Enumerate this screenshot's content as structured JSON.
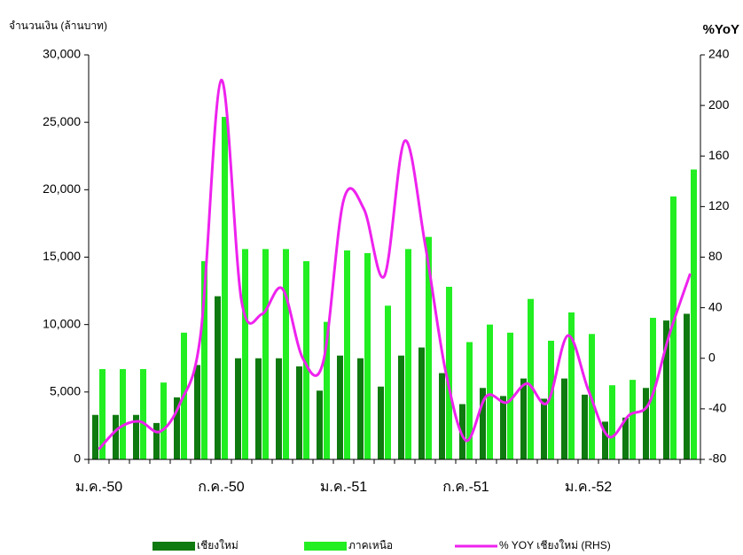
{
  "chart_data": {
    "type": "bar",
    "y_label": "จำนวนเงิน (ล้านบาท)",
    "y2_label": "%YoY",
    "categories": [
      "ม.ค.-50",
      null,
      null,
      null,
      null,
      null,
      "ก.ค.-50",
      null,
      null,
      null,
      null,
      null,
      "ม.ค.-51",
      null,
      null,
      null,
      null,
      null,
      "ก.ค.-51",
      null,
      null,
      null,
      null,
      null,
      "ม.ค.-52",
      null,
      null,
      null,
      null,
      null
    ],
    "series": [
      {
        "name": "เชียงใหม่",
        "color": "#0f7a0f",
        "values": [
          3300,
          3300,
          3300,
          2700,
          4600,
          7000,
          12100,
          7500,
          7500,
          7500,
          6900,
          5100,
          7700,
          7500,
          5400,
          7700,
          8300,
          6400,
          4100,
          5300,
          4700,
          6000,
          4500,
          6000,
          4800,
          2800,
          3100,
          5300,
          10300,
          10800
        ]
      },
      {
        "name": "ภาคเหนือ",
        "color": "#22ee22",
        "values": [
          6700,
          6700,
          6700,
          5700,
          9400,
          14700,
          25400,
          15600,
          15600,
          15600,
          14700,
          10200,
          15500,
          15300,
          11400,
          15600,
          16500,
          12800,
          8700,
          10000,
          9400,
          11900,
          8800,
          10900,
          9300,
          5500,
          5900,
          10500,
          19500,
          21500
        ]
      },
      {
        "name": "% YOY เชียงใหม่ (RHS)",
        "color": "#ee22ee",
        "type": "line",
        "axis": "y2",
        "values": [
          -72,
          -55,
          -50,
          -58,
          -35,
          20,
          220,
          45,
          35,
          55,
          0,
          -3,
          125,
          118,
          65,
          172,
          90,
          -10,
          -65,
          -30,
          -35,
          -20,
          -35,
          18,
          -25,
          -62,
          -45,
          -35,
          20,
          67
        ]
      }
    ],
    "ylim": [
      0,
      30000
    ],
    "yticks": [
      0,
      {
        "value": 5000,
        "label": "5,000"
      },
      {
        "value": 10000,
        "label": "10,000"
      },
      {
        "value": 15000,
        "label": "15,000"
      },
      {
        "value": 20000,
        "label": "20,000"
      },
      {
        "value": 25000,
        "label": "25,000"
      },
      {
        "value": 30000,
        "label": "30,000"
      }
    ],
    "y2lim": [
      -80,
      240
    ],
    "y2ticks": [
      -80,
      -40,
      0,
      40,
      80,
      120,
      160,
      200,
      240
    ],
    "legend": "bottom"
  }
}
